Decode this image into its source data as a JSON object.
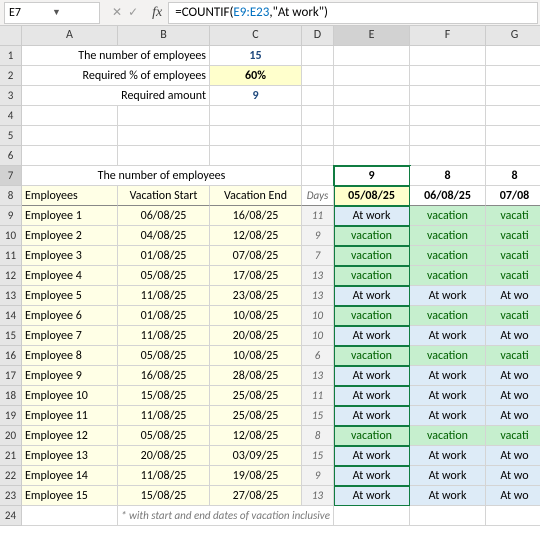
{
  "namebox": "E7",
  "formula": {
    "prefix": "=COUNTIF(",
    "ref": "E9:E23",
    "suffix": ",\"At work\")"
  },
  "cols": [
    "A",
    "B",
    "C",
    "D",
    "E",
    "F",
    "G"
  ],
  "header": {
    "num_emp_lbl": "The number of employees",
    "num_emp_val": "15",
    "req_pct_lbl": "Required % of employees",
    "req_pct_val": "60%",
    "req_amt_lbl": "Required amount",
    "req_amt_val": "9"
  },
  "title_row": "The number of employees",
  "counts": [
    "9",
    "8",
    "8"
  ],
  "dates": [
    "05/08/25",
    "06/08/25",
    "07/08"
  ],
  "th": {
    "emp": "Employees",
    "start": "Vacation Start",
    "end": "Vacation End",
    "days": "Days"
  },
  "rows": [
    {
      "n": "Employee 1",
      "s": "06/08/25",
      "e": "16/08/25",
      "d": "11",
      "v": [
        "At work",
        "vacation",
        "vacati"
      ]
    },
    {
      "n": "Employee 2",
      "s": "04/08/25",
      "e": "12/08/25",
      "d": "9",
      "v": [
        "vacation",
        "vacation",
        "vacati"
      ]
    },
    {
      "n": "Employee 3",
      "s": "01/08/25",
      "e": "07/08/25",
      "d": "7",
      "v": [
        "vacation",
        "vacation",
        "vacati"
      ]
    },
    {
      "n": "Employee 4",
      "s": "05/08/25",
      "e": "17/08/25",
      "d": "13",
      "v": [
        "vacation",
        "vacation",
        "vacati"
      ]
    },
    {
      "n": "Employee 5",
      "s": "11/08/25",
      "e": "23/08/25",
      "d": "13",
      "v": [
        "At work",
        "At work",
        "At wo"
      ]
    },
    {
      "n": "Employee 6",
      "s": "01/08/25",
      "e": "10/08/25",
      "d": "10",
      "v": [
        "vacation",
        "vacation",
        "vacati"
      ]
    },
    {
      "n": "Employee 7",
      "s": "11/08/25",
      "e": "20/08/25",
      "d": "10",
      "v": [
        "At work",
        "At work",
        "At wo"
      ]
    },
    {
      "n": "Employee 8",
      "s": "05/08/25",
      "e": "10/08/25",
      "d": "6",
      "v": [
        "vacation",
        "vacation",
        "vacati"
      ]
    },
    {
      "n": "Employee 9",
      "s": "16/08/25",
      "e": "28/08/25",
      "d": "13",
      "v": [
        "At work",
        "At work",
        "At wo"
      ]
    },
    {
      "n": "Employee 10",
      "s": "15/08/25",
      "e": "25/08/25",
      "d": "11",
      "v": [
        "At work",
        "At work",
        "At wo"
      ]
    },
    {
      "n": "Employee 11",
      "s": "11/08/25",
      "e": "25/08/25",
      "d": "15",
      "v": [
        "At work",
        "At work",
        "At wo"
      ]
    },
    {
      "n": "Employee 12",
      "s": "05/08/25",
      "e": "12/08/25",
      "d": "8",
      "v": [
        "vacation",
        "vacation",
        "vacati"
      ]
    },
    {
      "n": "Employee 13",
      "s": "20/08/25",
      "e": "03/09/25",
      "d": "15",
      "v": [
        "At work",
        "At work",
        "At wo"
      ]
    },
    {
      "n": "Employee 14",
      "s": "11/08/25",
      "e": "19/08/25",
      "d": "9",
      "v": [
        "At work",
        "At work",
        "At wo"
      ]
    },
    {
      "n": "Employee 15",
      "s": "15/08/25",
      "e": "27/08/25",
      "d": "13",
      "v": [
        "At work",
        "At work",
        "At wo"
      ]
    }
  ],
  "footnote": "* with start and end dates of vacation inclusive",
  "colors": {
    "vacation_bg": "#c6efce",
    "atwork_bg": "#ddebf7"
  }
}
